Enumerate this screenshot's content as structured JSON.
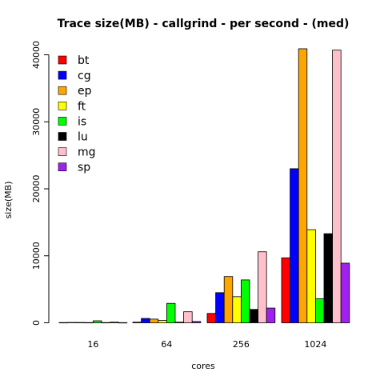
{
  "chart_data": {
    "type": "bar",
    "title": "Trace size(MB) - callgrind - per second - (med)",
    "xlabel": "cores",
    "ylabel": "size(MB)",
    "categories": [
      "16",
      "64",
      "256",
      "1024"
    ],
    "ylim": [
      0,
      41000
    ],
    "yticks": [
      0,
      10000,
      20000,
      30000,
      40000
    ],
    "yticks_labels": [
      "0",
      "10000",
      "20000",
      "30000",
      "40000"
    ],
    "legend_position": "top-left",
    "grid": false,
    "series": [
      {
        "name": "bt",
        "color": "#ff0000",
        "values": [
          40,
          100,
          1400,
          9700
        ]
      },
      {
        "name": "cg",
        "color": "#0000ff",
        "values": [
          60,
          650,
          4500,
          23000
        ]
      },
      {
        "name": "ep",
        "color": "#ffa500",
        "values": [
          50,
          550,
          6900,
          40900
        ]
      },
      {
        "name": "ft",
        "color": "#ffff00",
        "values": [
          40,
          350,
          3900,
          13900
        ]
      },
      {
        "name": "is",
        "color": "#00ff00",
        "values": [
          300,
          2900,
          6400,
          3600
        ]
      },
      {
        "name": "lu",
        "color": "#000000",
        "values": [
          40,
          100,
          2000,
          13300
        ]
      },
      {
        "name": "mg",
        "color": "#ffc0cb",
        "values": [
          100,
          1650,
          10600,
          40700
        ]
      },
      {
        "name": "sp",
        "color": "#a020f0",
        "values": [
          30,
          200,
          2200,
          8900
        ]
      }
    ]
  }
}
